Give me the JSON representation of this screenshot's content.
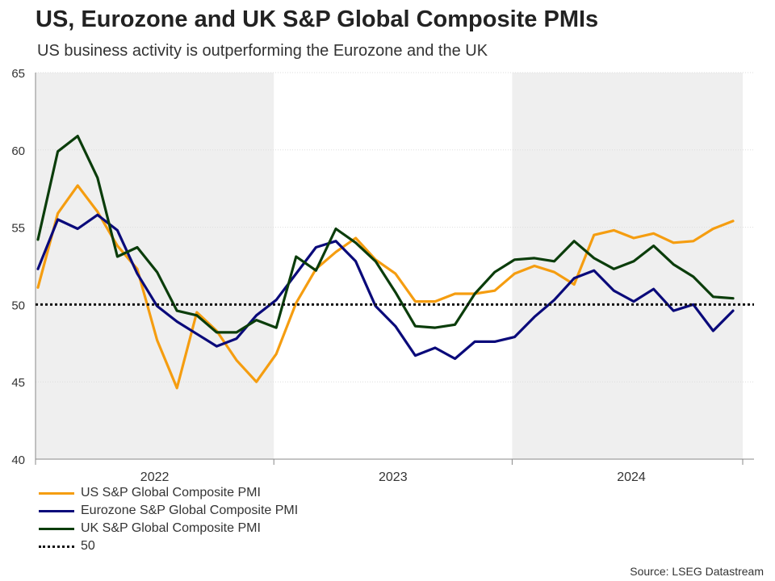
{
  "title": "US, Eurozone and UK S&P Global Composite PMIs",
  "subtitle": "US business activity is outperforming the Eurozone and the UK",
  "source": "Source: LSEG Datastream",
  "colors": {
    "us": "#f59d10",
    "eurozone": "#0a0a7a",
    "uk": "#0b3d0b",
    "reference": "#111111",
    "shade": "#efefef",
    "grid": "#dddddd"
  },
  "chart_data": {
    "type": "line",
    "ylim": [
      40,
      65
    ],
    "yticks": [
      40,
      45,
      50,
      55,
      60,
      65
    ],
    "x_range": [
      0,
      36
    ],
    "year_labels": [
      {
        "label": "2022",
        "center": 6
      },
      {
        "label": "2023",
        "center": 18
      },
      {
        "label": "2024",
        "center": 30
      }
    ],
    "year_boundaries": [
      12,
      24
    ],
    "shaded_years": [
      [
        0,
        12
      ],
      [
        24,
        36
      ]
    ],
    "reference_line": {
      "name": "50",
      "value": 50
    },
    "series": [
      {
        "name": "US S&P Global Composite PMI",
        "color_key": "us",
        "x": [
          0,
          1,
          2,
          3,
          4,
          5,
          6,
          7,
          8,
          9,
          10,
          11,
          12,
          13,
          14,
          15,
          16,
          17,
          18,
          19,
          20,
          21,
          22,
          23,
          24,
          25,
          26,
          27,
          28,
          29,
          30,
          31,
          32,
          33,
          34,
          35
        ],
        "values": [
          51.1,
          55.9,
          57.7,
          56.0,
          53.8,
          52.3,
          47.7,
          44.6,
          49.5,
          48.3,
          46.4,
          45.0,
          46.8,
          50.1,
          52.3,
          53.4,
          54.3,
          52.9,
          52.0,
          50.2,
          50.2,
          50.7,
          50.7,
          50.9,
          52.0,
          52.5,
          52.1,
          51.3,
          54.5,
          54.8,
          54.3,
          54.6,
          54.0,
          54.1,
          54.9,
          55.4
        ]
      },
      {
        "name": "Eurozone S&P Global Composite PMI",
        "color_key": "eurozone",
        "x": [
          0,
          1,
          2,
          3,
          4,
          5,
          6,
          7,
          8,
          9,
          10,
          11,
          12,
          13,
          14,
          15,
          16,
          17,
          18,
          19,
          20,
          21,
          22,
          23,
          24,
          25,
          26,
          27,
          28,
          29,
          30,
          31,
          32,
          33,
          34,
          35
        ],
        "values": [
          52.3,
          55.5,
          54.9,
          55.8,
          54.8,
          52.0,
          49.9,
          48.9,
          48.1,
          47.3,
          47.8,
          49.3,
          50.3,
          52.0,
          53.7,
          54.1,
          52.8,
          49.9,
          48.6,
          46.7,
          47.2,
          46.5,
          47.6,
          47.6,
          47.9,
          49.2,
          50.3,
          51.7,
          52.2,
          50.9,
          50.2,
          51.0,
          49.6,
          50.0,
          48.3,
          49.6
        ]
      },
      {
        "name": "UK S&P Global Composite PMI",
        "color_key": "uk",
        "x": [
          0,
          1,
          2,
          3,
          4,
          5,
          6,
          7,
          8,
          9,
          10,
          11,
          12,
          13,
          14,
          15,
          16,
          17,
          18,
          19,
          20,
          21,
          22,
          23,
          24,
          25,
          26,
          27,
          28,
          29,
          30,
          31,
          32,
          33,
          34,
          35
        ],
        "values": [
          54.2,
          59.9,
          60.9,
          58.2,
          53.1,
          53.7,
          52.1,
          49.6,
          49.3,
          48.2,
          48.2,
          49.0,
          48.5,
          53.1,
          52.2,
          54.9,
          54.0,
          52.8,
          50.8,
          48.6,
          48.5,
          48.7,
          50.7,
          52.1,
          52.9,
          53.0,
          52.8,
          54.1,
          53.0,
          52.3,
          52.8,
          53.8,
          52.6,
          51.8,
          50.5,
          50.4
        ]
      }
    ]
  }
}
